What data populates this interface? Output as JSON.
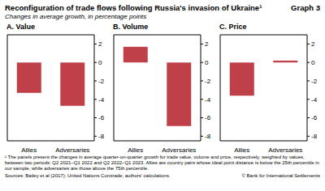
{
  "title": "Reconfiguration of trade flows following Russia's invasion of Ukraine¹",
  "graph_label": "Graph 3",
  "subtitle": "Changes in average growth, in percentage points",
  "footnote": "¹ The panels present the changes in average quarter-on-quarter growth for trade value, volume and price, respectively, weighted by values, between two periods: Q2 2021–Q1 2022 and Q2 2022–Q1 2023. Allies are country pairs whose ideal point distance is below the 25th percentile in our sample, while adversaries are those above the 75th percentile.",
  "sources": "Sources: Bailey et al (2017); United Nations Comtrade; authors' calculations.",
  "copyright": "© Bank for International Settlements",
  "chart_data": [
    {
      "type": "bar",
      "title": "A. Value",
      "categories": [
        "Allies",
        "Adversaries"
      ],
      "values": [
        -3.3,
        -4.7
      ],
      "color": "#c0404a",
      "ylim": [
        -8.5,
        3
      ],
      "yticks": [
        -8,
        -6,
        -4,
        -2,
        0,
        2
      ],
      "grid": false
    },
    {
      "type": "bar",
      "title": "B. Volume",
      "categories": [
        "Allies",
        "Adversaries"
      ],
      "values": [
        1.7,
        -6.9
      ],
      "color": "#c0404a",
      "ylim": [
        -8.5,
        3
      ],
      "yticks": [
        -8,
        -6,
        -4,
        -2,
        0,
        2
      ],
      "grid": false
    },
    {
      "type": "bar",
      "title": "C. Price",
      "categories": [
        "Allies",
        "Adversaries"
      ],
      "values": [
        -3.6,
        0.2
      ],
      "color": "#c0404a",
      "ylim": [
        -8.5,
        3
      ],
      "yticks": [
        -8,
        -6,
        -4,
        -2,
        0,
        2
      ],
      "grid": false
    }
  ]
}
